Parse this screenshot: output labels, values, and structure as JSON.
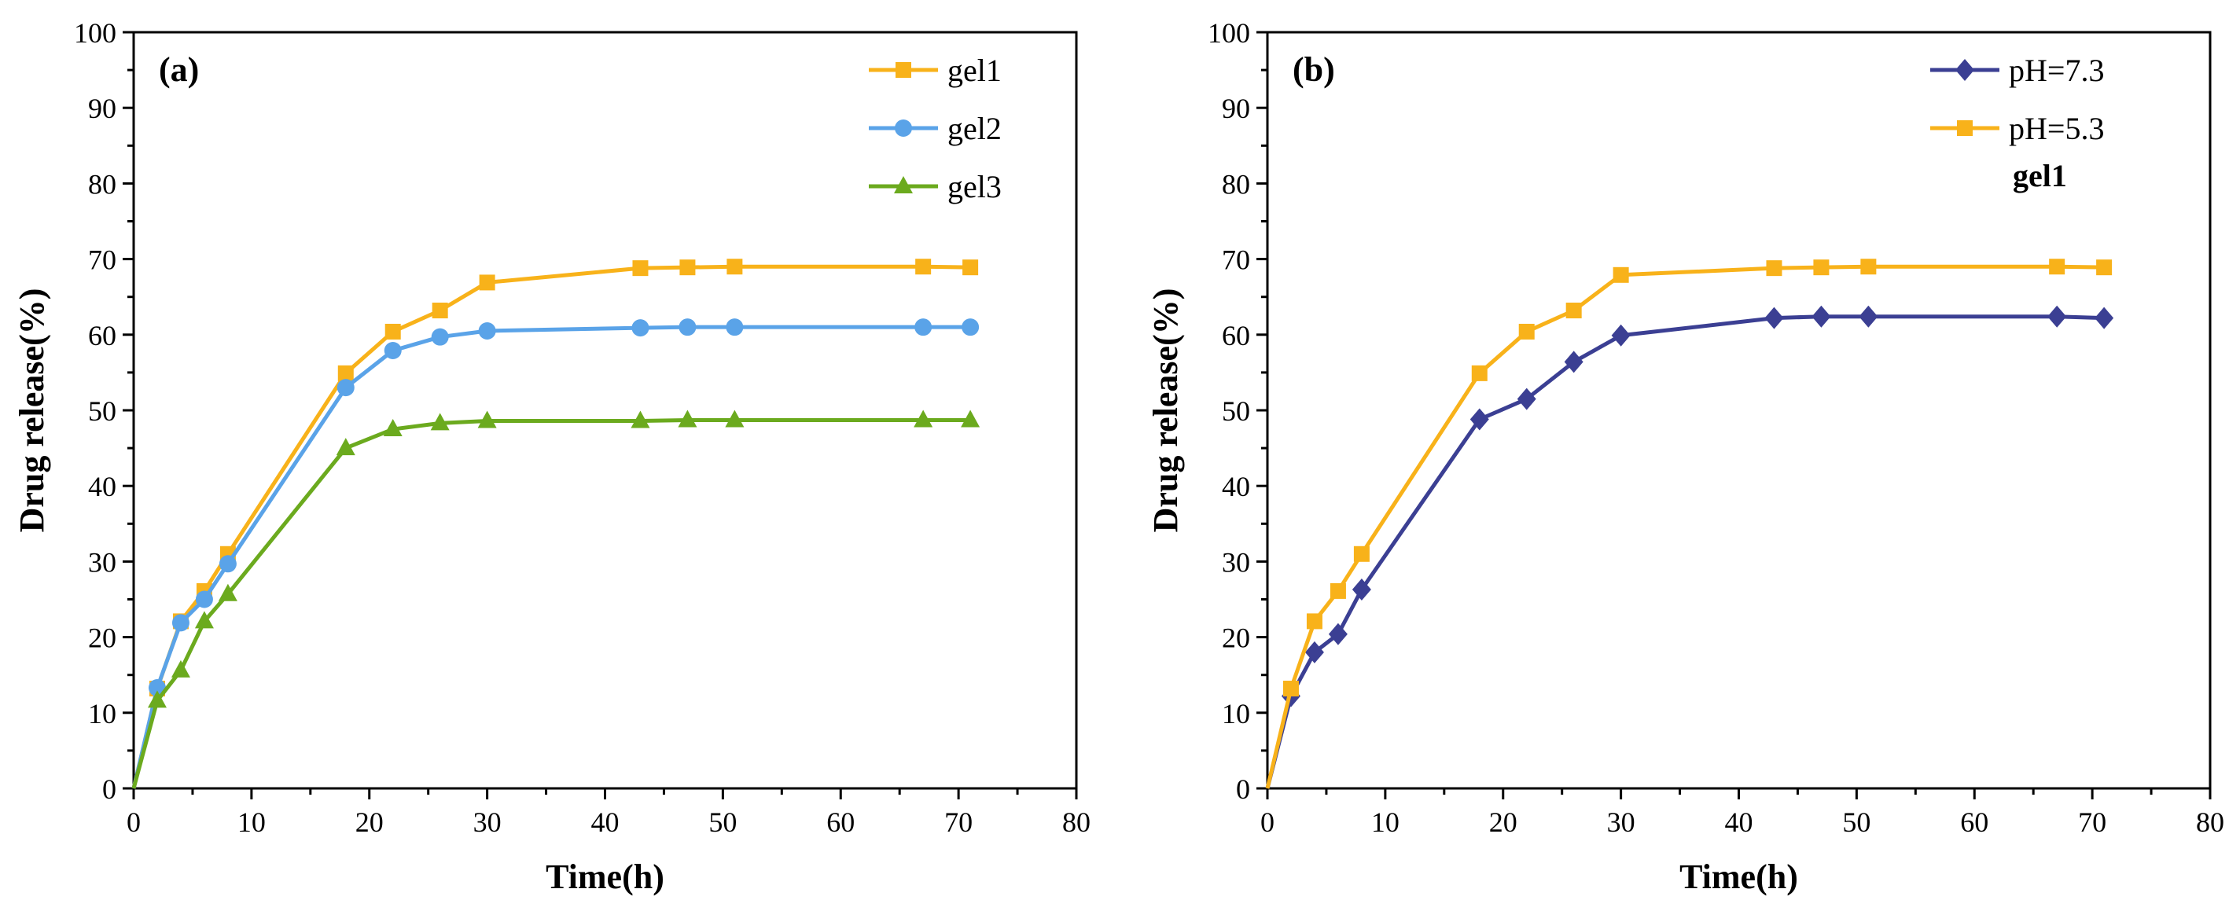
{
  "colors": {
    "gel1": "#F8B21A",
    "gel2": "#5AA3E8",
    "gel3": "#6BAA1E",
    "ph73": "#3B3F93",
    "ph53": "#F8B21A"
  },
  "chart_data": [
    {
      "type": "line",
      "panel_label": "(a)",
      "xlabel": "Time(h)",
      "ylabel": "Drug release(%)",
      "xlim": [
        0,
        80
      ],
      "ylim": [
        0,
        100
      ],
      "xticks": [
        0,
        10,
        20,
        30,
        40,
        50,
        60,
        70,
        80
      ],
      "yticks": [
        0,
        10,
        20,
        30,
        40,
        50,
        60,
        70,
        80,
        90,
        100
      ],
      "grid": false,
      "legend_position": "top-right",
      "series": [
        {
          "name": "gel1",
          "color_key": "gel1",
          "marker": "square",
          "x": [
            0,
            2,
            4,
            6,
            8,
            18,
            22,
            26,
            30,
            43,
            47,
            51,
            67,
            71
          ],
          "y": [
            0,
            13.2,
            22.1,
            26.1,
            31.0,
            54.9,
            60.4,
            63.2,
            66.9,
            68.8,
            68.9,
            69.0,
            69.0,
            68.9
          ]
        },
        {
          "name": "gel2",
          "color_key": "gel2",
          "marker": "circle",
          "x": [
            0,
            2,
            4,
            6,
            8,
            18,
            22,
            26,
            30,
            43,
            47,
            51,
            67,
            71
          ],
          "y": [
            0,
            13.3,
            21.9,
            25.0,
            29.7,
            53.0,
            57.9,
            59.7,
            60.5,
            60.9,
            61.0,
            61.0,
            61.0,
            61.0
          ]
        },
        {
          "name": "gel3",
          "color_key": "gel3",
          "marker": "triangle",
          "x": [
            0,
            2,
            4,
            6,
            8,
            18,
            22,
            26,
            30,
            43,
            47,
            51,
            67,
            71
          ],
          "y": [
            0,
            11.6,
            15.6,
            22.1,
            25.7,
            45.0,
            47.5,
            48.3,
            48.6,
            48.6,
            48.7,
            48.7,
            48.7,
            48.7
          ]
        }
      ]
    },
    {
      "type": "line",
      "panel_label": "(b)",
      "xlabel": "Time(h)",
      "ylabel": "Drug release(%)",
      "xlim": [
        0,
        80
      ],
      "ylim": [
        0,
        100
      ],
      "xticks": [
        0,
        10,
        20,
        30,
        40,
        50,
        60,
        70,
        80
      ],
      "yticks": [
        0,
        10,
        20,
        30,
        40,
        50,
        60,
        70,
        80,
        90,
        100
      ],
      "grid": false,
      "legend_position": "top-right",
      "legend_note": "gel1",
      "series": [
        {
          "name": "pH=7.3",
          "color_key": "ph73",
          "marker": "diamond",
          "x": [
            0,
            2,
            4,
            6,
            8,
            18,
            22,
            26,
            30,
            43,
            47,
            51,
            67,
            71
          ],
          "y": [
            0,
            12.2,
            18.0,
            20.4,
            26.3,
            48.8,
            51.5,
            56.4,
            59.9,
            62.2,
            62.4,
            62.4,
            62.4,
            62.2
          ]
        },
        {
          "name": "pH=5.3",
          "color_key": "ph53",
          "marker": "square",
          "x": [
            0,
            2,
            4,
            6,
            8,
            18,
            22,
            26,
            30,
            43,
            47,
            51,
            67,
            71
          ],
          "y": [
            0,
            13.2,
            22.1,
            26.1,
            31.0,
            54.9,
            60.4,
            63.2,
            67.9,
            68.8,
            68.9,
            69.0,
            69.0,
            68.9
          ]
        }
      ]
    }
  ]
}
